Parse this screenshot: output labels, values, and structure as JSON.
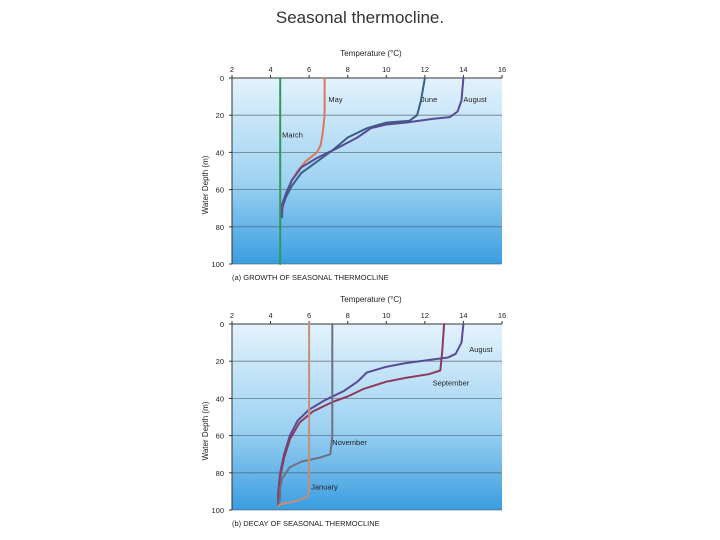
{
  "title": "Seasonal thermocline.",
  "chart_data": [
    {
      "type": "line",
      "caption": "(a) GROWTH OF SEASONAL THERMOCLINE",
      "xlabel": "Temperature (°C)",
      "ylabel": "Water Depth (m)",
      "xlim": [
        2,
        16
      ],
      "ylim": [
        0,
        100
      ],
      "xticks": [
        2,
        4,
        6,
        8,
        10,
        12,
        14,
        16
      ],
      "yticks": [
        0,
        20,
        40,
        60,
        80,
        100
      ],
      "series": [
        {
          "name": "March",
          "color": "#2e9a5a",
          "points": [
            [
              4.5,
              0
            ],
            [
              4.5,
              100
            ]
          ]
        },
        {
          "name": "May",
          "color": "#d9765f",
          "points": [
            [
              6.8,
              0
            ],
            [
              6.8,
              12
            ],
            [
              6.8,
              20
            ],
            [
              6.7,
              30
            ],
            [
              6.6,
              36
            ],
            [
              6.4,
              40
            ],
            [
              5.8,
              45
            ],
            [
              5.4,
              50
            ],
            [
              5.1,
              55
            ],
            [
              4.9,
              60
            ],
            [
              4.7,
              66
            ],
            [
              4.6,
              72
            ]
          ]
        },
        {
          "name": "June",
          "color": "#3a5f87",
          "points": [
            [
              12,
              0
            ],
            [
              11.8,
              12
            ],
            [
              11.6,
              20
            ],
            [
              11.2,
              23
            ],
            [
              10,
              24
            ],
            [
              9,
              27
            ],
            [
              8,
              32
            ],
            [
              7.2,
              39
            ],
            [
              6.4,
              45
            ],
            [
              5.6,
              51
            ],
            [
              5.1,
              58
            ],
            [
              4.8,
              64
            ],
            [
              4.6,
              70
            ],
            [
              4.6,
              75
            ]
          ]
        },
        {
          "name": "August",
          "color": "#5a4a96",
          "points": [
            [
              14,
              0
            ],
            [
              13.9,
              12
            ],
            [
              13.7,
              18
            ],
            [
              13.3,
              21
            ],
            [
              12.4,
              22
            ],
            [
              11,
              24
            ],
            [
              10,
              25
            ],
            [
              9.2,
              27
            ],
            [
              8.5,
              32
            ],
            [
              7.4,
              38
            ],
            [
              6.4,
              43
            ],
            [
              5.6,
              48
            ],
            [
              5.1,
              55
            ],
            [
              4.8,
              62
            ],
            [
              4.6,
              68
            ],
            [
              4.6,
              73
            ]
          ]
        }
      ]
    },
    {
      "type": "line",
      "caption": "(b) DECAY OF SEASONAL THERMOCLINE",
      "xlabel": "Temperature (°C)",
      "ylabel": "Water Depth (m)",
      "xlim": [
        2,
        16
      ],
      "ylim": [
        0,
        100
      ],
      "xticks": [
        2,
        4,
        6,
        8,
        10,
        12,
        14,
        16
      ],
      "yticks": [
        0,
        20,
        40,
        60,
        80,
        100
      ],
      "series": [
        {
          "name": "August",
          "color": "#5a4a96",
          "points": [
            [
              14,
              0
            ],
            [
              13.9,
              10
            ],
            [
              13.6,
              16
            ],
            [
              13.2,
              18
            ],
            [
              12.5,
              19
            ],
            [
              11,
              21
            ],
            [
              10,
              23
            ],
            [
              9,
              26
            ],
            [
              8.5,
              31
            ],
            [
              7.8,
              36
            ],
            [
              6.8,
              41
            ],
            [
              6,
              46
            ],
            [
              5.4,
              52
            ],
            [
              5,
              60
            ],
            [
              4.7,
              70
            ],
            [
              4.5,
              80
            ],
            [
              4.4,
              90
            ],
            [
              4.4,
              98
            ]
          ]
        },
        {
          "name": "September",
          "color": "#8f3a5a",
          "points": [
            [
              13,
              0
            ],
            [
              12.9,
              15
            ],
            [
              12.8,
              25
            ],
            [
              12.2,
              27
            ],
            [
              11,
              29
            ],
            [
              10,
              31
            ],
            [
              8.8,
              35
            ],
            [
              8,
              39
            ],
            [
              7.2,
              42
            ],
            [
              6.2,
              47
            ],
            [
              5.5,
              53
            ],
            [
              5,
              62
            ],
            [
              4.7,
              72
            ],
            [
              4.5,
              82
            ],
            [
              4.4,
              92
            ],
            [
              4.4,
              98
            ]
          ]
        },
        {
          "name": "November",
          "color": "#6f6f82",
          "points": [
            [
              7.2,
              0
            ],
            [
              7.2,
              30
            ],
            [
              7.2,
              60
            ],
            [
              7.1,
              70
            ],
            [
              6.5,
              72
            ],
            [
              5.6,
              74
            ],
            [
              5,
              77
            ],
            [
              4.6,
              83
            ],
            [
              4.5,
              88
            ],
            [
              4.5,
              93
            ],
            [
              4.4,
              98
            ]
          ]
        },
        {
          "name": "January",
          "color": "#c98e73",
          "points": [
            [
              6,
              0
            ],
            [
              6,
              50
            ],
            [
              6,
              80
            ],
            [
              6,
              90
            ],
            [
              5.9,
              93
            ],
            [
              5.4,
              95
            ],
            [
              4.9,
              96
            ],
            [
              4.5,
              97
            ],
            [
              4.4,
              98
            ]
          ]
        }
      ]
    }
  ]
}
